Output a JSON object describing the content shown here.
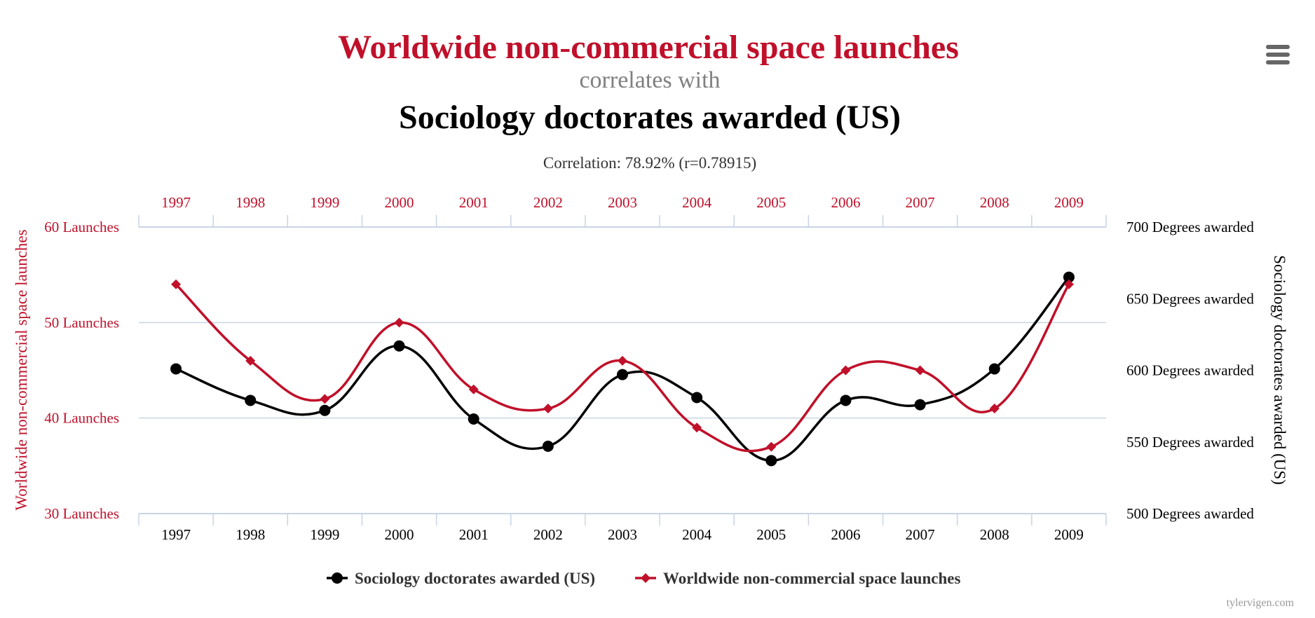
{
  "header": {
    "title": "Worldwide non-commercial space launches",
    "subtitle": "correlates with",
    "title2": "Sociology doctorates awarded (US)",
    "correlation": "Correlation: 78.92% (r=0.78915)"
  },
  "menu": {
    "icon": "hamburger-menu-icon"
  },
  "credit": "tylervigen.com",
  "colors": {
    "red": "#c0102a",
    "black": "#000000",
    "grid": "#c8d4e3"
  },
  "chart_data": {
    "type": "line",
    "title": "Worldwide non-commercial space launches correlates with Sociology doctorates awarded (US)",
    "categories": [
      "1997",
      "1998",
      "1999",
      "2000",
      "2001",
      "2002",
      "2003",
      "2004",
      "2005",
      "2006",
      "2007",
      "2008",
      "2009"
    ],
    "left_axis": {
      "title": "Worldwide non-commercial space launches",
      "range": [
        30,
        60
      ],
      "ticks": [
        {
          "value": 60,
          "label": "60 Launches"
        },
        {
          "value": 50,
          "label": "50 Launches"
        },
        {
          "value": 40,
          "label": "40 Launches"
        },
        {
          "value": 30,
          "label": "30 Launches"
        }
      ]
    },
    "right_axis": {
      "title": "Sociology doctorates awarded (US)",
      "range": [
        500,
        700
      ],
      "ticks": [
        {
          "value": 700,
          "label": "700 Degrees awarded"
        },
        {
          "value": 650,
          "label": "650 Degrees awarded"
        },
        {
          "value": 600,
          "label": "600 Degrees awarded"
        },
        {
          "value": 550,
          "label": "550 Degrees awarded"
        },
        {
          "value": 500,
          "label": "500 Degrees awarded"
        }
      ]
    },
    "series": [
      {
        "name": "Sociology doctorates awarded (US)",
        "axis": "right",
        "color": "#000000",
        "marker": "circle",
        "values": [
          601,
          579,
          572,
          617,
          566,
          547,
          597,
          581,
          537,
          579,
          576,
          601,
          665
        ]
      },
      {
        "name": "Worldwide non-commercial space launches",
        "axis": "left",
        "color": "#c0102a",
        "marker": "diamond",
        "values": [
          54,
          46,
          42,
          50,
          43,
          41,
          46,
          39,
          37,
          45,
          45,
          41,
          54
        ]
      }
    ],
    "legend": {
      "position": "bottom-center"
    }
  }
}
